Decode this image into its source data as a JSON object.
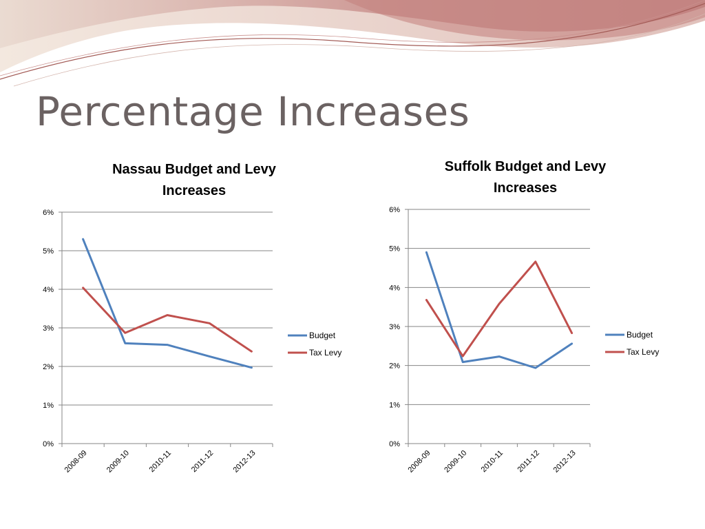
{
  "slide": {
    "title": "Percentage Increases"
  },
  "colors": {
    "budget": "#4f81bd",
    "tax_levy": "#c0504d",
    "gridline": "#868686",
    "title_text": "#6b6262"
  },
  "chart_data": [
    {
      "type": "line",
      "title_lines": [
        "Nassau Budget and Levy",
        "Increases"
      ],
      "categories": [
        "2008-09",
        "2009-10",
        "2010-11",
        "2011-12",
        "2012-13"
      ],
      "y_tick_labels": [
        "0%",
        "1%",
        "2%",
        "3%",
        "4%",
        "5%",
        "6%"
      ],
      "ylim": [
        0,
        6
      ],
      "grid": true,
      "legend_position": "right",
      "series": [
        {
          "name": "Budget",
          "values": [
            5.3,
            2.6,
            2.56,
            2.26,
            1.97
          ]
        },
        {
          "name": "Tax Levy",
          "values": [
            4.04,
            2.87,
            3.33,
            3.12,
            2.39
          ]
        }
      ]
    },
    {
      "type": "line",
      "title_lines": [
        "Suffolk Budget and Levy",
        "Increases"
      ],
      "categories": [
        "2008-09",
        "2009-10",
        "2010-11",
        "2011-12",
        "2012-13"
      ],
      "y_tick_labels": [
        "0%",
        "1%",
        "2%",
        "3%",
        "4%",
        "5%",
        "6%"
      ],
      "ylim": [
        0,
        6
      ],
      "grid": true,
      "legend_position": "right",
      "series": [
        {
          "name": "Budget",
          "values": [
            4.9,
            2.09,
            2.23,
            1.94,
            2.56
          ]
        },
        {
          "name": "Tax Levy",
          "values": [
            3.68,
            2.24,
            3.58,
            4.66,
            2.83
          ]
        }
      ]
    }
  ]
}
